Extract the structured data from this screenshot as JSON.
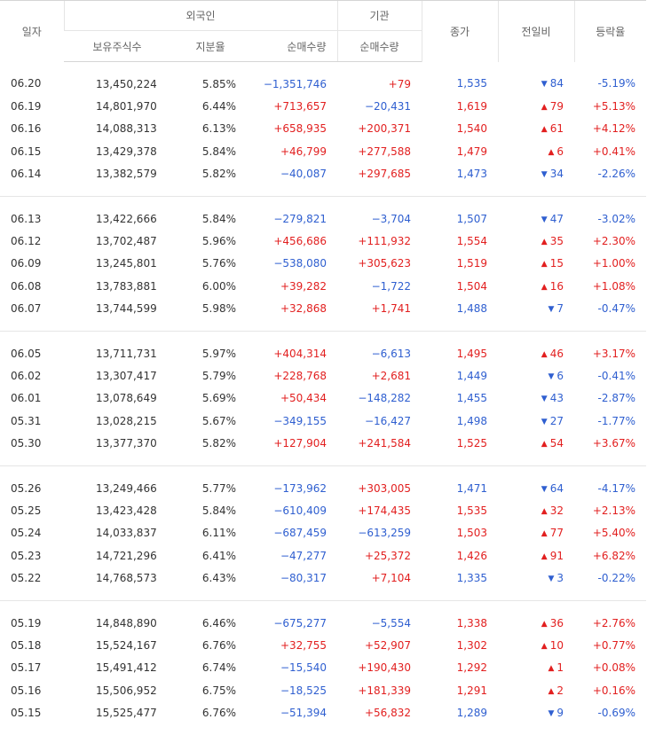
{
  "colors": {
    "up": "#e21f1f",
    "down": "#2f5fd0"
  },
  "header": {
    "date": "일자",
    "foreign": "외국인",
    "institution": "기관",
    "close": "종가",
    "change": "전일비",
    "rate": "등락율",
    "holdings": "보유주식수",
    "ratio": "지분율",
    "foreign_net": "순매수량",
    "inst_net": "순매수량"
  },
  "groups": [
    [
      {
        "date": "06.20",
        "hold": "13,450,224",
        "ratio": "5.85%",
        "fnet": "−1,351,746",
        "fdir": "down",
        "inet": "+79",
        "idir": "up",
        "close": "1,535",
        "cdir": "down",
        "chg": "84",
        "chgdir": "down",
        "chgicon": "triangle-down-icon",
        "pct": "-5.19%"
      },
      {
        "date": "06.19",
        "hold": "14,801,970",
        "ratio": "6.44%",
        "fnet": "+713,657",
        "fdir": "up",
        "inet": "−20,431",
        "idir": "down",
        "close": "1,619",
        "cdir": "up",
        "chg": "79",
        "chgdir": "up",
        "chgicon": "triangle-up-icon",
        "pct": "+5.13%"
      },
      {
        "date": "06.16",
        "hold": "14,088,313",
        "ratio": "6.13%",
        "fnet": "+658,935",
        "fdir": "up",
        "inet": "+200,371",
        "idir": "up",
        "close": "1,540",
        "cdir": "up",
        "chg": "61",
        "chgdir": "up",
        "chgicon": "triangle-up-icon",
        "pct": "+4.12%"
      },
      {
        "date": "06.15",
        "hold": "13,429,378",
        "ratio": "5.84%",
        "fnet": "+46,799",
        "fdir": "up",
        "inet": "+277,588",
        "idir": "up",
        "close": "1,479",
        "cdir": "up",
        "chg": "6",
        "chgdir": "up",
        "chgicon": "triangle-up-icon",
        "pct": "+0.41%"
      },
      {
        "date": "06.14",
        "hold": "13,382,579",
        "ratio": "5.82%",
        "fnet": "−40,087",
        "fdir": "down",
        "inet": "+297,685",
        "idir": "up",
        "close": "1,473",
        "cdir": "down",
        "chg": "34",
        "chgdir": "down",
        "chgicon": "triangle-down-icon",
        "pct": "-2.26%"
      }
    ],
    [
      {
        "date": "06.13",
        "hold": "13,422,666",
        "ratio": "5.84%",
        "fnet": "−279,821",
        "fdir": "down",
        "inet": "−3,704",
        "idir": "down",
        "close": "1,507",
        "cdir": "down",
        "chg": "47",
        "chgdir": "down",
        "chgicon": "triangle-down-icon",
        "pct": "-3.02%"
      },
      {
        "date": "06.12",
        "hold": "13,702,487",
        "ratio": "5.96%",
        "fnet": "+456,686",
        "fdir": "up",
        "inet": "+111,932",
        "idir": "up",
        "close": "1,554",
        "cdir": "up",
        "chg": "35",
        "chgdir": "up",
        "chgicon": "triangle-up-icon",
        "pct": "+2.30%"
      },
      {
        "date": "06.09",
        "hold": "13,245,801",
        "ratio": "5.76%",
        "fnet": "−538,080",
        "fdir": "down",
        "inet": "+305,623",
        "idir": "up",
        "close": "1,519",
        "cdir": "up",
        "chg": "15",
        "chgdir": "up",
        "chgicon": "triangle-up-icon",
        "pct": "+1.00%"
      },
      {
        "date": "06.08",
        "hold": "13,783,881",
        "ratio": "6.00%",
        "fnet": "+39,282",
        "fdir": "up",
        "inet": "−1,722",
        "idir": "down",
        "close": "1,504",
        "cdir": "up",
        "chg": "16",
        "chgdir": "up",
        "chgicon": "triangle-up-icon",
        "pct": "+1.08%"
      },
      {
        "date": "06.07",
        "hold": "13,744,599",
        "ratio": "5.98%",
        "fnet": "+32,868",
        "fdir": "up",
        "inet": "+1,741",
        "idir": "up",
        "close": "1,488",
        "cdir": "down",
        "chg": "7",
        "chgdir": "down",
        "chgicon": "triangle-down-icon",
        "pct": "-0.47%"
      }
    ],
    [
      {
        "date": "06.05",
        "hold": "13,711,731",
        "ratio": "5.97%",
        "fnet": "+404,314",
        "fdir": "up",
        "inet": "−6,613",
        "idir": "down",
        "close": "1,495",
        "cdir": "up",
        "chg": "46",
        "chgdir": "up",
        "chgicon": "triangle-up-icon",
        "pct": "+3.17%"
      },
      {
        "date": "06.02",
        "hold": "13,307,417",
        "ratio": "5.79%",
        "fnet": "+228,768",
        "fdir": "up",
        "inet": "+2,681",
        "idir": "up",
        "close": "1,449",
        "cdir": "down",
        "chg": "6",
        "chgdir": "down",
        "chgicon": "triangle-down-icon",
        "pct": "-0.41%"
      },
      {
        "date": "06.01",
        "hold": "13,078,649",
        "ratio": "5.69%",
        "fnet": "+50,434",
        "fdir": "up",
        "inet": "−148,282",
        "idir": "down",
        "close": "1,455",
        "cdir": "down",
        "chg": "43",
        "chgdir": "down",
        "chgicon": "triangle-down-icon",
        "pct": "-2.87%"
      },
      {
        "date": "05.31",
        "hold": "13,028,215",
        "ratio": "5.67%",
        "fnet": "−349,155",
        "fdir": "down",
        "inet": "−16,427",
        "idir": "down",
        "close": "1,498",
        "cdir": "down",
        "chg": "27",
        "chgdir": "down",
        "chgicon": "triangle-down-icon",
        "pct": "-1.77%"
      },
      {
        "date": "05.30",
        "hold": "13,377,370",
        "ratio": "5.82%",
        "fnet": "+127,904",
        "fdir": "up",
        "inet": "+241,584",
        "idir": "up",
        "close": "1,525",
        "cdir": "up",
        "chg": "54",
        "chgdir": "up",
        "chgicon": "triangle-up-icon",
        "pct": "+3.67%"
      }
    ],
    [
      {
        "date": "05.26",
        "hold": "13,249,466",
        "ratio": "5.77%",
        "fnet": "−173,962",
        "fdir": "down",
        "inet": "+303,005",
        "idir": "up",
        "close": "1,471",
        "cdir": "down",
        "chg": "64",
        "chgdir": "down",
        "chgicon": "triangle-down-icon",
        "pct": "-4.17%"
      },
      {
        "date": "05.25",
        "hold": "13,423,428",
        "ratio": "5.84%",
        "fnet": "−610,409",
        "fdir": "down",
        "inet": "+174,435",
        "idir": "up",
        "close": "1,535",
        "cdir": "up",
        "chg": "32",
        "chgdir": "up",
        "chgicon": "triangle-up-icon",
        "pct": "+2.13%"
      },
      {
        "date": "05.24",
        "hold": "14,033,837",
        "ratio": "6.11%",
        "fnet": "−687,459",
        "fdir": "down",
        "inet": "−613,259",
        "idir": "down",
        "close": "1,503",
        "cdir": "up",
        "chg": "77",
        "chgdir": "up",
        "chgicon": "triangle-up-icon",
        "pct": "+5.40%"
      },
      {
        "date": "05.23",
        "hold": "14,721,296",
        "ratio": "6.41%",
        "fnet": "−47,277",
        "fdir": "down",
        "inet": "+25,372",
        "idir": "up",
        "close": "1,426",
        "cdir": "up",
        "chg": "91",
        "chgdir": "up",
        "chgicon": "triangle-up-icon",
        "pct": "+6.82%"
      },
      {
        "date": "05.22",
        "hold": "14,768,573",
        "ratio": "6.43%",
        "fnet": "−80,317",
        "fdir": "down",
        "inet": "+7,104",
        "idir": "up",
        "close": "1,335",
        "cdir": "down",
        "chg": "3",
        "chgdir": "down",
        "chgicon": "triangle-down-icon",
        "pct": "-0.22%"
      }
    ],
    [
      {
        "date": "05.19",
        "hold": "14,848,890",
        "ratio": "6.46%",
        "fnet": "−675,277",
        "fdir": "down",
        "inet": "−5,554",
        "idir": "down",
        "close": "1,338",
        "cdir": "up",
        "chg": "36",
        "chgdir": "up",
        "chgicon": "triangle-up-icon",
        "pct": "+2.76%"
      },
      {
        "date": "05.18",
        "hold": "15,524,167",
        "ratio": "6.76%",
        "fnet": "+32,755",
        "fdir": "up",
        "inet": "+52,907",
        "idir": "up",
        "close": "1,302",
        "cdir": "up",
        "chg": "10",
        "chgdir": "up",
        "chgicon": "triangle-up-icon",
        "pct": "+0.77%"
      },
      {
        "date": "05.17",
        "hold": "15,491,412",
        "ratio": "6.74%",
        "fnet": "−15,540",
        "fdir": "down",
        "inet": "+190,430",
        "idir": "up",
        "close": "1,292",
        "cdir": "up",
        "chg": "1",
        "chgdir": "up",
        "chgicon": "triangle-up-icon",
        "pct": "+0.08%"
      },
      {
        "date": "05.16",
        "hold": "15,506,952",
        "ratio": "6.75%",
        "fnet": "−18,525",
        "fdir": "down",
        "inet": "+181,339",
        "idir": "up",
        "close": "1,291",
        "cdir": "up",
        "chg": "2",
        "chgdir": "up",
        "chgicon": "triangle-up-icon",
        "pct": "+0.16%"
      },
      {
        "date": "05.15",
        "hold": "15,525,477",
        "ratio": "6.76%",
        "fnet": "−51,394",
        "fdir": "down",
        "inet": "+56,832",
        "idir": "up",
        "close": "1,289",
        "cdir": "down",
        "chg": "9",
        "chgdir": "down",
        "chgicon": "triangle-down-icon",
        "pct": "-0.69%"
      }
    ]
  ]
}
